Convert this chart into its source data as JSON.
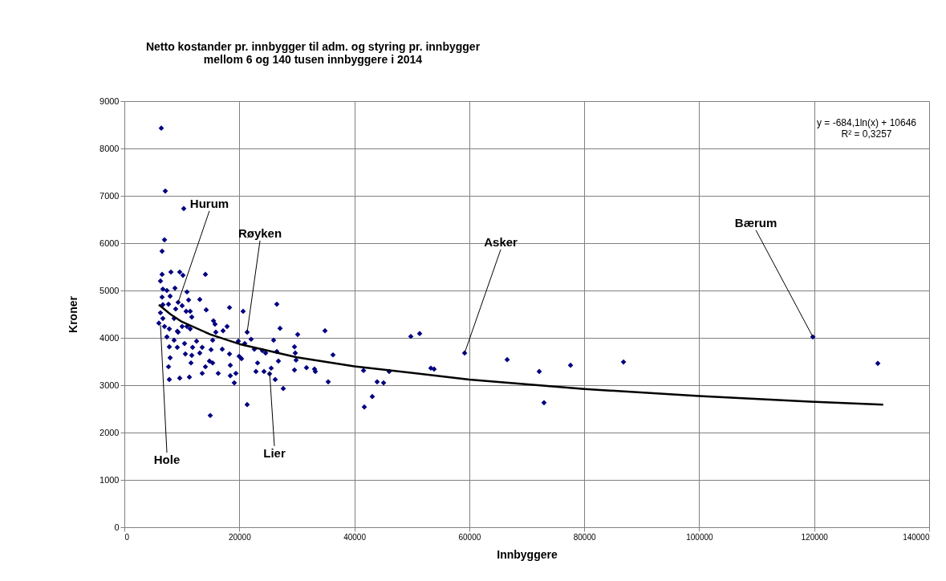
{
  "chart_data": {
    "type": "scatter",
    "title": "Netto kostander pr. innbygger til adm. og styring pr. innbygger\nmellom 6 og 140 tusen  innbyggere i 2014",
    "xlabel": "Innbyggere",
    "ylabel": "Kroner",
    "xlim": [
      0,
      140000
    ],
    "xticks": [
      0,
      20000,
      40000,
      60000,
      80000,
      100000,
      120000,
      140000
    ],
    "ylim": [
      0,
      9000
    ],
    "yticks": [
      0,
      1000,
      2000,
      3000,
      4000,
      5000,
      6000,
      7000,
      8000,
      9000
    ],
    "grid": true,
    "marker": "diamond",
    "series": [
      {
        "color": "#000080",
        "x": [
          6420,
          7120,
          10330,
          6980,
          6560,
          6560,
          8100,
          9630,
          10190,
          14100,
          6280,
          6700,
          7400,
          8800,
          10890,
          6560,
          7960,
          9350,
          10050,
          11170,
          13120,
          6700,
          7680,
          8930,
          10750,
          14240,
          18290,
          20660,
          6280,
          6700,
          8650,
          11450,
          11730,
          6000,
          6980,
          7820,
          9210,
          10050,
          10890,
          11450,
          15500,
          15770,
          15910,
          17170,
          17870,
          21360,
          7400,
          8650,
          9350,
          15360,
          7820,
          9210,
          10470,
          11870,
          12560,
          13540,
          15080,
          17030,
          18290,
          19960,
          7960,
          10610,
          11730,
          13120,
          14800,
          15360,
          11590,
          7680,
          14100,
          18430,
          13540,
          16330,
          18430,
          19120,
          19400,
          7820,
          9630,
          11310,
          21360,
          14940,
          26520,
          27080,
          30150,
          34900,
          19820,
          22050,
          20940,
          22610,
          24010,
          24570,
          25960,
          26520,
          29590,
          29730,
          29870,
          36290,
          20380,
          23170,
          26800,
          25540,
          31680,
          29590,
          33220,
          33080,
          22890,
          24290,
          25260,
          26240,
          27640,
          35460,
          41600,
          46060,
          43970,
          45090,
          43130,
          41740,
          49830,
          51370,
          59190,
          66590,
          72170,
          73000,
          77610,
          86830,
          53320,
          53880,
          119770,
          131070
        ],
        "values": [
          8430,
          7100,
          6730,
          6070,
          5830,
          5340,
          5390,
          5390,
          5320,
          5340,
          5200,
          5030,
          5000,
          5050,
          4970,
          4860,
          4880,
          4750,
          4680,
          4800,
          4810,
          4700,
          4710,
          4610,
          4560,
          4590,
          4640,
          4560,
          4530,
          4410,
          4410,
          4560,
          4440,
          4310,
          4240,
          4190,
          4140,
          4240,
          4240,
          4190,
          4360,
          4290,
          4120,
          4150,
          4240,
          4120,
          4020,
          3950,
          4120,
          3950,
          3810,
          3800,
          3880,
          3800,
          3930,
          3800,
          3750,
          3760,
          3660,
          3610,
          3580,
          3660,
          3630,
          3680,
          3510,
          3470,
          3470,
          3390,
          3390,
          3420,
          3250,
          3250,
          3200,
          3050,
          3250,
          3120,
          3150,
          3170,
          2590,
          2360,
          4710,
          4200,
          4070,
          4150,
          3930,
          3970,
          3880,
          3760,
          3730,
          3680,
          3950,
          3710,
          3810,
          3680,
          3530,
          3640,
          3560,
          3470,
          3510,
          3360,
          3370,
          3320,
          3290,
          3340,
          3290,
          3290,
          3240,
          3120,
          2930,
          3070,
          3310,
          3290,
          3070,
          3050,
          2760,
          2540,
          4030,
          4090,
          3680,
          3540,
          3290,
          2630,
          3420,
          3490,
          3360,
          3340,
          4020,
          3460
        ]
      },
      {
        "type": "line",
        "color": "#000000",
        "marker": "none",
        "x": [
          6000,
          8000,
          10000,
          15000,
          20000,
          30000,
          40000,
          60000,
          80000,
          100000,
          120000,
          132000
        ],
        "values": [
          4700,
          4500,
          4340,
          4070,
          3870,
          3590,
          3400,
          3120,
          2920,
          2770,
          2650,
          2590
        ]
      }
    ],
    "annotations": [
      "y = -684,1ln(x) + 10646",
      "R² = 0,3257",
      {
        "text": "Hurum",
        "x": 9350,
        "y": 4750
      },
      {
        "text": "Røyken",
        "x": 21360,
        "y": 4120
      },
      {
        "text": "Asker",
        "x": 59190,
        "y": 3680
      },
      {
        "text": "Bærum",
        "x": 119770,
        "y": 4020
      },
      {
        "text": "Hole",
        "x": 6280,
        "y": 4270
      },
      {
        "text": "Lier",
        "x": 25260,
        "y": 3290
      }
    ]
  }
}
